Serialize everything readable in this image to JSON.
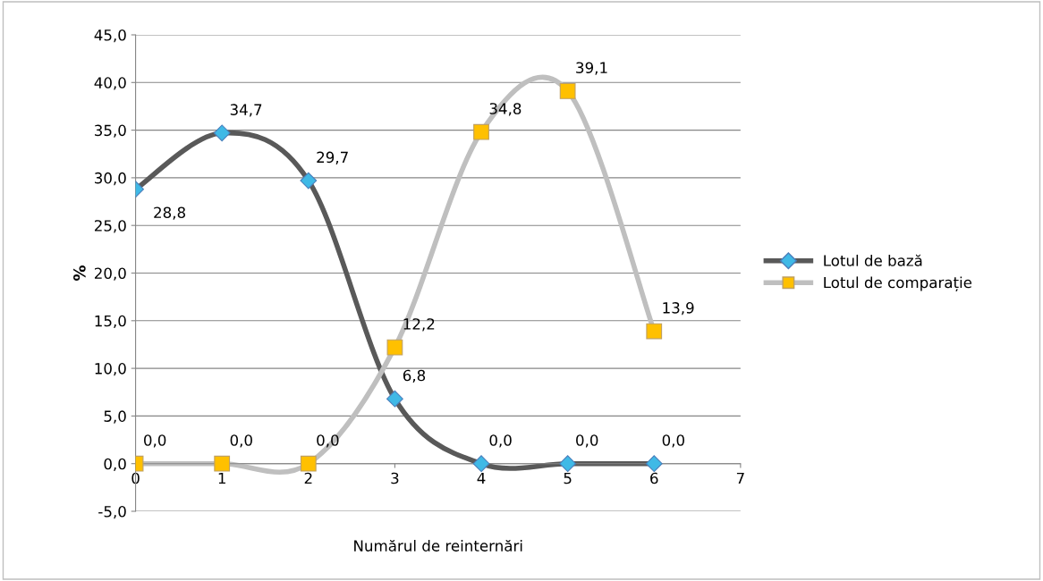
{
  "chart_data": {
    "type": "line",
    "xlabel": "Numărul de reinternări",
    "ylabel": "%",
    "x": [
      0,
      1,
      2,
      3,
      4,
      5,
      6
    ],
    "series": [
      {
        "name": "Lotul de bază",
        "color": "#595959",
        "colors": [
          "#3fb9e6",
          "#3fb9e6",
          "#3fb9e6",
          "#3fb9e6",
          "#3fb9e6",
          "#3fb9e6",
          "#3fb9e6"
        ],
        "marker": "diamond",
        "values": [
          28.8,
          34.7,
          29.7,
          6.8,
          0.0,
          0.0,
          0.0
        ],
        "value_labels": [
          "28,8",
          "34,7",
          "29,7",
          "6,8",
          "0,0",
          "0,0",
          "0,0"
        ]
      },
      {
        "name": "Lotul de comparație",
        "color": "#bfbfbf",
        "colors": [
          "#ffc000",
          "#ffc000",
          "#ffc000",
          "#ffc000",
          "#ffc000",
          "#ffc000",
          "#ffc000"
        ],
        "marker": "square",
        "values": [
          0.0,
          0.0,
          0.0,
          12.2,
          34.8,
          39.1,
          13.9
        ],
        "value_labels": [
          "0,0",
          "0,0",
          "0,0",
          "12,2",
          "34,8",
          "39,1",
          "13,9"
        ]
      }
    ],
    "xlim": [
      0,
      7
    ],
    "xticks": [
      0,
      1,
      2,
      3,
      4,
      5,
      6,
      7
    ],
    "ylim": [
      -5,
      45
    ],
    "yticks": [
      {
        "value": -5,
        "label": "-5,0"
      },
      {
        "value": 0,
        "label": "0,0"
      },
      {
        "value": 5,
        "label": "5,0"
      },
      {
        "value": 10,
        "label": "10,0"
      },
      {
        "value": 15,
        "label": "15,0"
      },
      {
        "value": 20,
        "label": "20,0"
      },
      {
        "value": 25,
        "label": "25,0"
      },
      {
        "value": 30,
        "label": "30,0"
      },
      {
        "value": 35,
        "label": "35,0"
      },
      {
        "value": 40,
        "label": "40,0"
      },
      {
        "value": 45,
        "label": "45,0"
      }
    ],
    "grid": "y",
    "legend": "right"
  }
}
